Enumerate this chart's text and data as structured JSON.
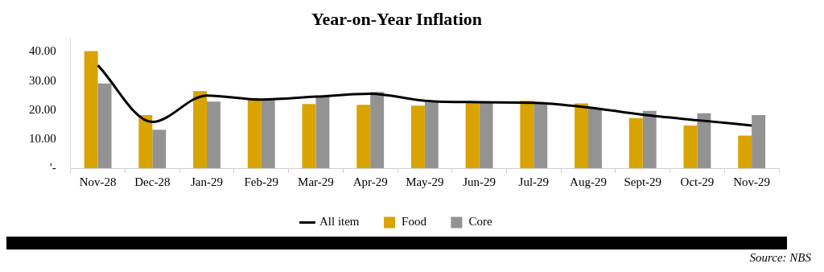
{
  "chart_data": {
    "type": "bar",
    "title": "Year-on-Year Inflation",
    "categories": [
      "Nov-28",
      "Dec-28",
      "Jan-29",
      "Feb-29",
      "Mar-29",
      "Apr-29",
      "May-29",
      "Jun-29",
      "Jul-29",
      "Aug-29",
      "Sept-29",
      "Oct-29",
      "Nov-29"
    ],
    "series": [
      {
        "name": "All item",
        "type": "line",
        "color": "#000000",
        "values": [
          35.4,
          15.9,
          25.0,
          23.6,
          24.6,
          25.6,
          23.2,
          22.7,
          22.5,
          20.9,
          18.4,
          16.5,
          14.7
        ]
      },
      {
        "name": "Food",
        "color": "#d9a300",
        "values": [
          40.3,
          18.3,
          26.5,
          23.8,
          22.1,
          21.8,
          21.5,
          22.9,
          23.2,
          22.3,
          17.2,
          14.7,
          11.2
        ]
      },
      {
        "name": "Core",
        "color": "#939393",
        "values": [
          29.1,
          13.2,
          22.9,
          23.8,
          24.8,
          26.2,
          22.6,
          22.9,
          22.4,
          20.5,
          19.7,
          18.9,
          18.3
        ]
      }
    ],
    "ylim": [
      0,
      45
    ],
    "yticks": [
      {
        "value": 0,
        "label": "'-"
      },
      {
        "value": 10,
        "label": "10.00"
      },
      {
        "value": 20,
        "label": "20.00"
      },
      {
        "value": 30,
        "label": "30.00"
      },
      {
        "value": 40,
        "label": "40.00"
      }
    ],
    "grid": false,
    "legend": "bottom",
    "marker": "none",
    "line_style": "solid",
    "annotations": [
      "Source: NBS"
    ]
  }
}
